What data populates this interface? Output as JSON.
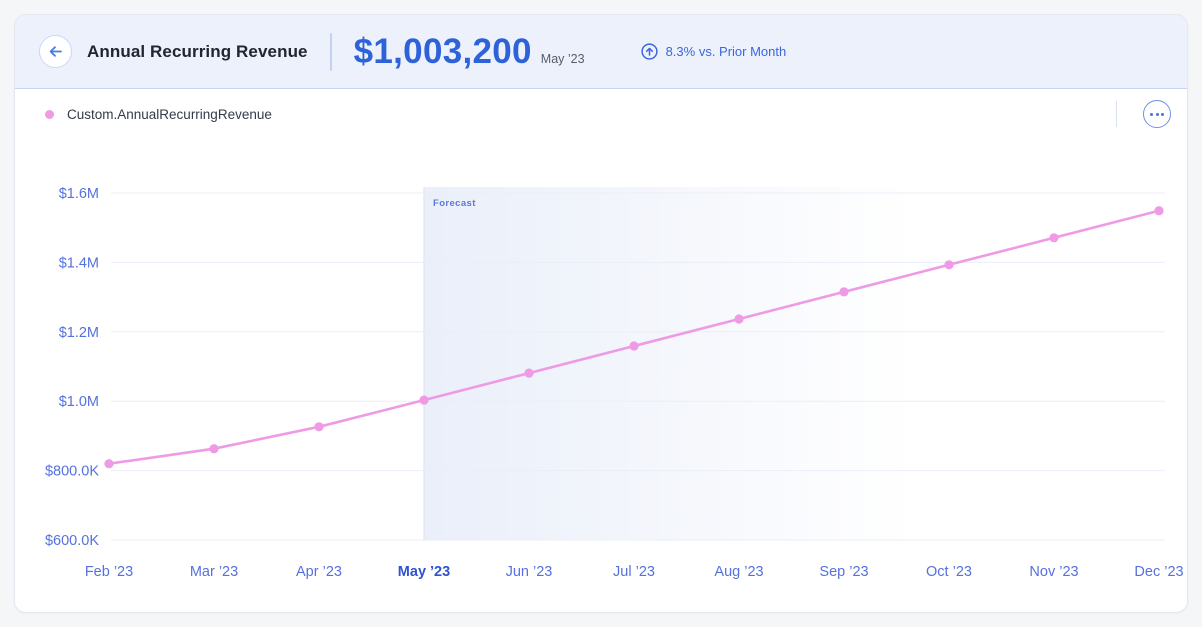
{
  "header": {
    "title": "Annual Recurring Revenue",
    "value": "$1,003,200",
    "period": "May ’23",
    "trend": "8.3% vs. Prior Month"
  },
  "legend": {
    "series_label": "Custom.AnnualRecurringRevenue"
  },
  "colors": {
    "series": "#ee9ae5",
    "accent_blue": "#2e62d9",
    "axis_blue": "#5571de",
    "grid": "#e9eefa",
    "forecast_line": "#dee5f2",
    "forecast_band": "#e6ecf8",
    "header_bg": "#edf1fb"
  },
  "chart_data": {
    "type": "line",
    "title": "Annual Recurring Revenue",
    "x": [
      "Feb ’23",
      "Mar ’23",
      "Apr ’23",
      "May ’23",
      "Jun ’23",
      "Jul ’23",
      "Aug ’23",
      "Sep ’23",
      "Oct ’23",
      "Nov ’23",
      "Dec ’23"
    ],
    "values": [
      820000,
      863000,
      926300,
      1003200,
      1081000,
      1159000,
      1237000,
      1315000,
      1393000,
      1471000,
      1549000
    ],
    "series": [
      {
        "name": "Custom.AnnualRecurringRevenue",
        "values": [
          820000,
          863000,
          926300,
          1003200,
          1081000,
          1159000,
          1237000,
          1315000,
          1393000,
          1471000,
          1549000
        ]
      }
    ],
    "y_ticks": [
      "$1.6M",
      "$1.4M",
      "$1.2M",
      "$1.0M",
      "$800.0K",
      "$600.0K"
    ],
    "y_tick_values": [
      1600000,
      1400000,
      1200000,
      1000000,
      800000,
      600000
    ],
    "ylim": [
      600000,
      1600000
    ],
    "xlabel": "",
    "ylabel": "",
    "grid": true,
    "legend_position": "top-left",
    "highlight_index": 3,
    "forecast": {
      "label": "Forecast",
      "start_index": 3
    }
  }
}
